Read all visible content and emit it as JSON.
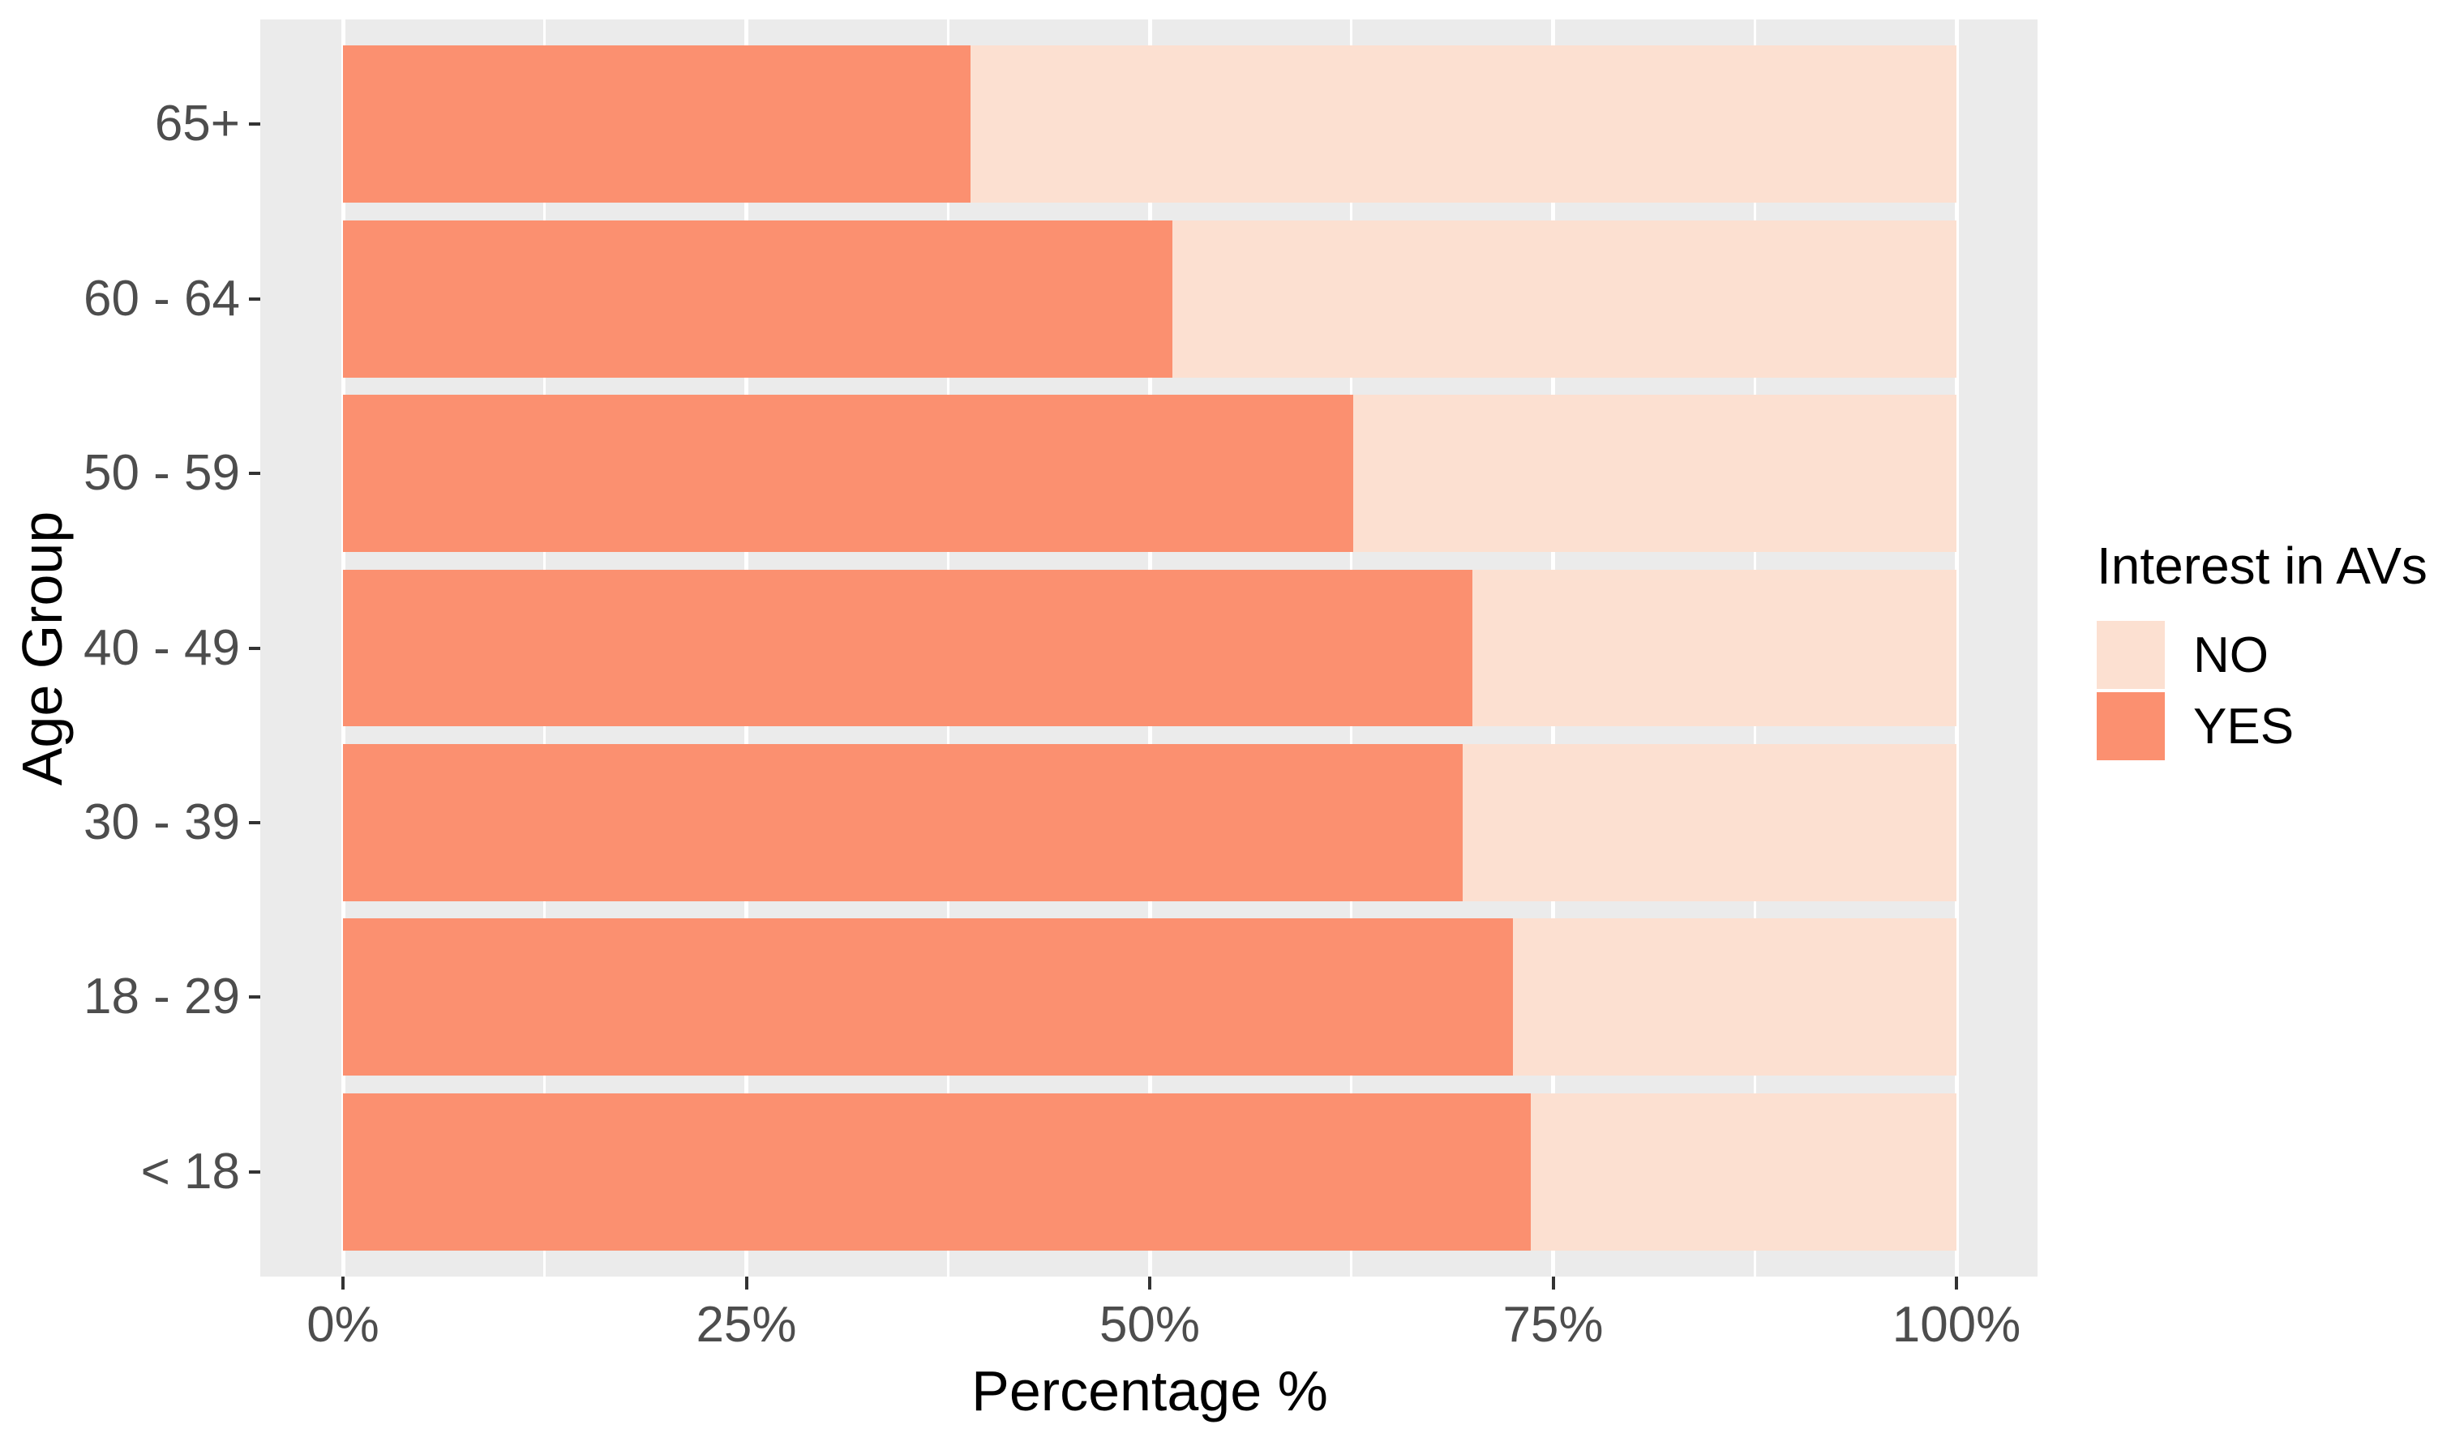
{
  "chart_data": {
    "type": "bar",
    "orientation": "horizontal",
    "stacked": true,
    "stack_total": 100,
    "title": "",
    "xlabel": "Percentage %",
    "ylabel": "Age Group",
    "categories": [
      "65+",
      "60 - 64",
      "50 - 59",
      "40 - 49",
      "30 - 39",
      "18 - 29",
      "< 18"
    ],
    "series": [
      {
        "name": "YES",
        "color": "#FB9070",
        "values": [
          38.9,
          51.4,
          62.6,
          70.0,
          69.4,
          72.5,
          73.6
        ]
      },
      {
        "name": "NO",
        "color": "#FCE0D1",
        "values": [
          61.1,
          48.6,
          37.4,
          30.0,
          30.6,
          27.5,
          26.4
        ]
      }
    ],
    "xlim": [
      0,
      100
    ],
    "x_ticks": [
      {
        "value": 0,
        "label": "0%"
      },
      {
        "value": 25,
        "label": "25%"
      },
      {
        "value": 50,
        "label": "50%"
      },
      {
        "value": 75,
        "label": "75%"
      },
      {
        "value": 100,
        "label": "100%"
      }
    ],
    "x_minor_gridlines": [
      12.5,
      37.5,
      62.5,
      87.5
    ],
    "grid": true,
    "legend": {
      "title": "Interest in AVs",
      "position": "right",
      "entries": [
        {
          "label": "NO",
          "color": "#FCE0D1"
        },
        {
          "label": "YES",
          "color": "#FB9070"
        }
      ]
    },
    "colors": {
      "panel_background": "#EBEBEB",
      "gridline": "#FFFFFF",
      "tick_mark": "#333333",
      "axis_text": "#4D4D4D",
      "axis_title": "#000000",
      "legend_text": "#000000"
    }
  }
}
